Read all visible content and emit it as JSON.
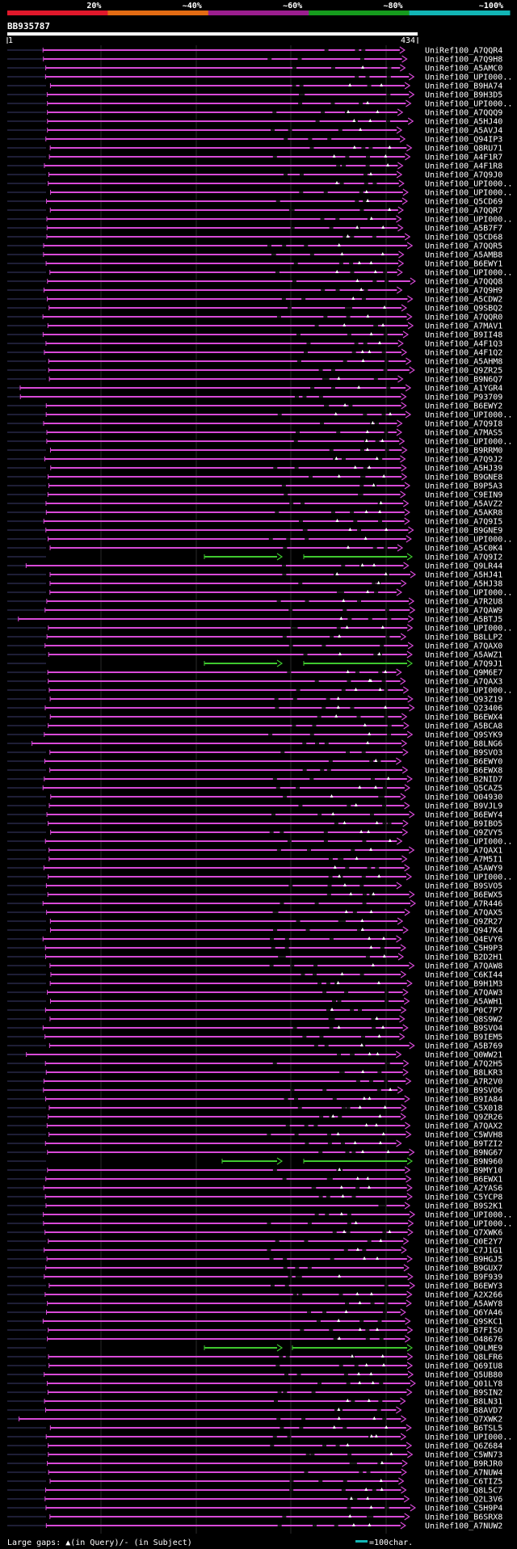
{
  "chart_data": {
    "type": "alignment",
    "query_id": "BB935787",
    "query_start": "1",
    "query_end": "434",
    "query_length": 434,
    "identity_bands": [
      {
        "label": "20%",
        "color": "#e0182b"
      },
      {
        "label": "~40%",
        "color": "#e36b13"
      },
      {
        "label": "~60%",
        "color": "#9b1e8f"
      },
      {
        "label": "~80%",
        "color": "#169b1d"
      },
      {
        "label": "~100%",
        "color": "#12b5b5"
      }
    ],
    "hit_colors": {
      "high": "#d84ad8",
      "mid": "#3fc82f"
    },
    "hits": [
      "UniRef100_A7QQR4",
      "UniRef100_A7Q9H8",
      "UniRef100_A5AMC0",
      "UniRef100_UPI000..",
      "UniRef100_B9HA74",
      "UniRef100_B9H3D5",
      "UniRef100_UPI000..",
      "UniRef100_A7QQQ9",
      "UniRef100_A5HJ40",
      "UniRef100_A5AVJ4",
      "UniRef100_Q94IP3",
      "UniRef100_Q8RU71",
      "UniRef100_A4F1R7",
      "UniRef100_A4F1R8",
      "UniRef100_A7Q9J0",
      "UniRef100_UPI000..",
      "UniRef100_UPI000..",
      "UniRef100_Q5CD69",
      "UniRef100_A7QQR7",
      "UniRef100_UPI000..",
      "UniRef100_A5B7F7",
      "UniRef100_Q5CD68",
      "UniRef100_A7QQR5",
      "UniRef100_A5AMB8",
      "UniRef100_B6EWY1",
      "UniRef100_UPI000..",
      "UniRef100_A7QQQ8",
      "UniRef100_A7Q9H9",
      "UniRef100_A5CDW2",
      "UniRef100_Q9SBQ2",
      "UniRef100_A7QQR0",
      "UniRef100_A7MAV1",
      "UniRef100_B9II48",
      "UniRef100_A4F1Q3",
      "UniRef100_A4F1Q2",
      "UniRef100_A5AHM8",
      "UniRef100_Q9ZR25",
      "UniRef100_B9N6Q7",
      "UniRef100_A1YGR4",
      "UniRef100_P93709",
      "UniRef100_B6EWY2",
      "UniRef100_UPI000..",
      "UniRef100_A7Q9I8",
      "UniRef100_A7MAS5",
      "UniRef100_UPI000..",
      "UniRef100_B9RRM0",
      "UniRef100_A7Q9J2",
      "UniRef100_A5HJ39",
      "UniRef100_B9GNE8",
      "UniRef100_B9P5A3",
      "UniRef100_C9EIN9",
      "UniRef100_A5AVZ2",
      "UniRef100_A5AKR8",
      "UniRef100_A7Q9I5",
      "UniRef100_B9GNE9",
      "UniRef100_UPI000..",
      "UniRef100_A5C0K4",
      "UniRef100_A7Q9I2",
      "UniRef100_Q9LR44",
      "UniRef100_A5HJ41",
      "UniRef100_A5HJ38",
      "UniRef100_UPI000..",
      "UniRef100_A7R2U8",
      "UniRef100_A7QAW9",
      "UniRef100_A5BTJ5",
      "UniRef100_UPI000..",
      "UniRef100_B8LLP2",
      "UniRef100_A7QAX0",
      "UniRef100_A5AWZ1",
      "UniRef100_A7Q9J1",
      "UniRef100_Q9M6E7",
      "UniRef100_A7QAX3",
      "UniRef100_UPI000..",
      "UniRef100_Q93Z19",
      "UniRef100_O23406",
      "UniRef100_B6EWX4",
      "UniRef100_A5BCA8",
      "UniRef100_Q9SYK9",
      "UniRef100_B8LNG6",
      "UniRef100_B9SVO3",
      "UniRef100_B6EWY0",
      "UniRef100_B6EWX8",
      "UniRef100_B2NID7",
      "UniRef100_Q5CAZ5",
      "UniRef100_O04930",
      "UniRef100_B9VJL9",
      "UniRef100_B6EWY4",
      "UniRef100_B9IBO5",
      "UniRef100_Q9ZVY5",
      "UniRef100_UPI000..",
      "UniRef100_A7QAX1",
      "UniRef100_A7M5I1",
      "UniRef100_A5AWY9",
      "UniRef100_UPI000..",
      "UniRef100_B9SVO5",
      "UniRef100_B6EWX5",
      "UniRef100_A7R446",
      "UniRef100_A7QAX5",
      "UniRef100_Q9ZR27",
      "UniRef100_Q947K4",
      "UniRef100_Q4EVY6",
      "UniRef100_C5H9P3",
      "UniRef100_B2D2H1",
      "UniRef100_A7QAW8",
      "UniRef100_C6KI44",
      "UniRef100_B9H1M3",
      "UniRef100_A7QAW3",
      "UniRef100_A5AWH1",
      "UniRef100_P0C7P7",
      "UniRef100_Q8S9W2",
      "UniRef100_B9SVO4",
      "UniRef100_B9IEM5",
      "UniRef100_A5B769",
      "UniRef100_Q0WW21",
      "UniRef100_A7Q2H5",
      "UniRef100_B8LKR3",
      "UniRef100_A7R2V0",
      "UniRef100_B9SVO6",
      "UniRef100_B9IA84",
      "UniRef100_C5X018",
      "UniRef100_Q9ZR26",
      "UniRef100_A7QAX2",
      "UniRef100_C5WVH8",
      "UniRef100_B9TZI2",
      "UniRef100_B9NG67",
      "UniRef100_B9N960",
      "UniRef100_B9MY10",
      "UniRef100_B6EWX1",
      "UniRef100_A2YAS6",
      "UniRef100_C5YCP8",
      "UniRef100_B9S2K1",
      "UniRef100_UPI000..",
      "UniRef100_UPI000..",
      "UniRef100_Q7XWK6",
      "UniRef100_Q0E2Y7",
      "UniRef100_C7J1G1",
      "UniRef100_B9HGJ5",
      "UniRef100_B9GUX7",
      "UniRef100_B9F939",
      "UniRef100_B6EWY3",
      "UniRef100_A2X266",
      "UniRef100_A5AWY8",
      "UniRef100_Q6YA46",
      "UniRef100_Q9SKC1",
      "UniRef100_B7FISO",
      "UniRef100_O48676",
      "UniRef100_Q9LME9",
      "UniRef100_Q8LFR6",
      "UniRef100_Q69IU8",
      "UniRef100_Q5UB80",
      "UniRef100_Q01LY8",
      "UniRef100_B9SIN2",
      "UniRef100_B8LN31",
      "UniRef100_B8AVD7",
      "UniRef100_Q7XWK2",
      "UniRef100_B6TSL5",
      "UniRef100_UPI000..",
      "UniRef100_Q6Z684",
      "UniRef100_C5WN73",
      "UniRef100_B9RJR0",
      "UniRef100_A7NUW4",
      "UniRef100_C6TIZ5",
      "UniRef100_Q8L5C7",
      "UniRef100_Q2L3V6",
      "UniRef100_C5H9P4",
      "UniRef100_B6SRX8",
      "UniRef100_A7NUW2"
    ],
    "footer_legend": "Large gaps: ▲(in Query)/- (in Subject)",
    "scale_legend": "=100char."
  }
}
